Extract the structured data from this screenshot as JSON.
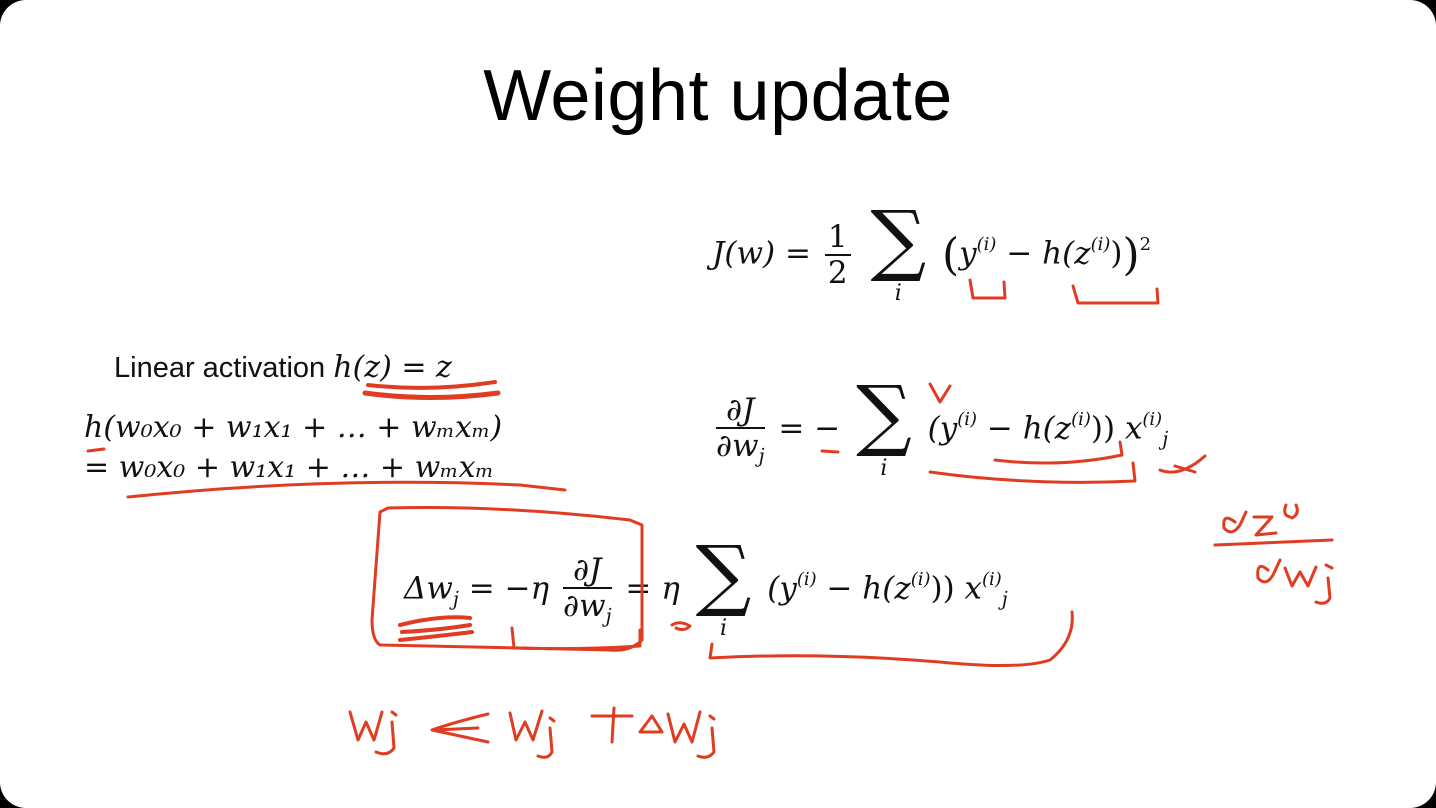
{
  "slide": {
    "title": "Weight update",
    "cost_function": {
      "lhs": "J(w) =",
      "half_num": "1",
      "half_den": "2",
      "sum_symbol": "∑",
      "sum_index": "i",
      "open_paren": "(",
      "y_term": "y",
      "sup_i": "(i)",
      "minus": "−",
      "h_term": "h(z",
      "close_inner": ")",
      "close_paren": ")",
      "power": "2"
    },
    "linear_activation": {
      "label": "Linear activation",
      "formula": "h(z) = z"
    },
    "expansion": {
      "line1": "h(w₀x₀ + w₁x₁ +  … + wₘxₘ)",
      "line2": "= w₀x₀ + w₁x₁ +  … + wₘxₘ"
    },
    "gradient": {
      "num": "∂J",
      "den": "∂w",
      "den_sub": "j",
      "equals_minus": "= −",
      "sum_symbol": "∑",
      "sum_index": "i",
      "body": "(y",
      "sup_i": "(i)",
      "minus_h": " − h(z",
      "close": "))",
      "x": "x",
      "x_sub": "j",
      "x_sup": "(i)"
    },
    "update_rule": {
      "delta": "Δw",
      "delta_sub": "j",
      "equals": "= −η",
      "num": "∂J",
      "den": "∂w",
      "den_sub": "j",
      "equals2": "= η",
      "sum_symbol": "∑",
      "sum_index": "i",
      "body": "(y",
      "sup_i": "(i)",
      "minus_h": " − h(z",
      "close": "))",
      "x": "x",
      "x_sub": "j",
      "x_sup": "(i)"
    }
  },
  "colors": {
    "ink": "#e03c22",
    "text": "#111111",
    "background": "#ffffff"
  }
}
